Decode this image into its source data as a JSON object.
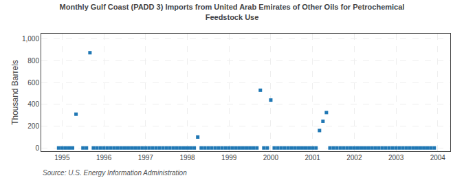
{
  "chart_data": {
    "type": "scatter",
    "title": "Monthly Gulf Coast (PADD 3) Imports from United Arab Emirates of Other Oils for Petrochemical\nFeedstock Use",
    "ylabel": "Thousand Barrels",
    "annotations": [
      "Source: U.S. Energy Information Administration"
    ],
    "marker": "square",
    "grid": true,
    "xlim": [
      1994.5,
      2004.3
    ],
    "xticks": [
      1995,
      1996,
      1997,
      1998,
      1999,
      2000,
      2001,
      2002,
      2003,
      2004
    ],
    "ylim": [
      -30,
      1050
    ],
    "yticks": [
      0,
      200,
      400,
      600,
      800,
      {
        "value": 1000,
        "label": "1,000"
      }
    ],
    "x": [
      1994.917,
      1995.0,
      1995.083,
      1995.167,
      1995.25,
      1995.333,
      1995.5,
      1995.583,
      1995.667,
      1995.75,
      1995.833,
      1995.917,
      1996.0,
      1996.083,
      1996.167,
      1996.25,
      1996.333,
      1996.417,
      1996.5,
      1996.583,
      1996.667,
      1996.75,
      1996.833,
      1996.917,
      1997.0,
      1997.083,
      1997.167,
      1997.25,
      1997.333,
      1997.417,
      1997.5,
      1997.583,
      1997.667,
      1997.75,
      1997.833,
      1997.917,
      1998.0,
      1998.083,
      1998.167,
      1998.25,
      1998.333,
      1998.417,
      1998.5,
      1998.583,
      1998.667,
      1998.75,
      1998.833,
      1998.917,
      1999.0,
      1999.083,
      1999.167,
      1999.25,
      1999.333,
      1999.417,
      1999.5,
      1999.583,
      1999.667,
      1999.75,
      1999.833,
      1999.917,
      2000.0,
      2000.083,
      2000.167,
      2000.25,
      2000.333,
      2000.417,
      2000.5,
      2000.583,
      2000.667,
      2000.75,
      2000.833,
      2000.917,
      2001.0,
      2001.083,
      2001.167,
      2001.25,
      2001.333,
      2001.417,
      2001.5,
      2001.583,
      2001.667,
      2001.75,
      2001.833,
      2001.917,
      2002.0,
      2002.083,
      2002.167,
      2002.25,
      2002.333,
      2002.417,
      2002.5,
      2002.583,
      2002.667,
      2002.75,
      2002.833,
      2002.917,
      2003.0,
      2003.083,
      2003.167,
      2003.25,
      2003.333,
      2003.417,
      2003.5,
      2003.583,
      2003.667,
      2003.75,
      2003.833,
      2003.917
    ],
    "values": [
      0,
      0,
      0,
      0,
      0,
      310,
      0,
      0,
      875,
      0,
      0,
      0,
      0,
      0,
      0,
      0,
      0,
      0,
      0,
      0,
      0,
      0,
      0,
      0,
      0,
      0,
      0,
      0,
      0,
      0,
      0,
      0,
      0,
      0,
      0,
      0,
      0,
      0,
      0,
      100,
      0,
      0,
      0,
      0,
      0,
      0,
      0,
      0,
      0,
      0,
      0,
      0,
      0,
      0,
      0,
      0,
      0,
      530,
      0,
      0,
      440,
      0,
      0,
      0,
      0,
      0,
      0,
      0,
      0,
      0,
      0,
      0,
      0,
      0,
      160,
      245,
      325,
      0,
      0,
      0,
      0,
      0,
      0,
      0,
      0,
      0,
      0,
      0,
      0,
      0,
      0,
      0,
      0,
      0,
      0,
      0,
      0,
      0,
      0,
      0,
      0,
      0,
      0,
      0,
      0,
      0,
      0,
      0
    ]
  }
}
